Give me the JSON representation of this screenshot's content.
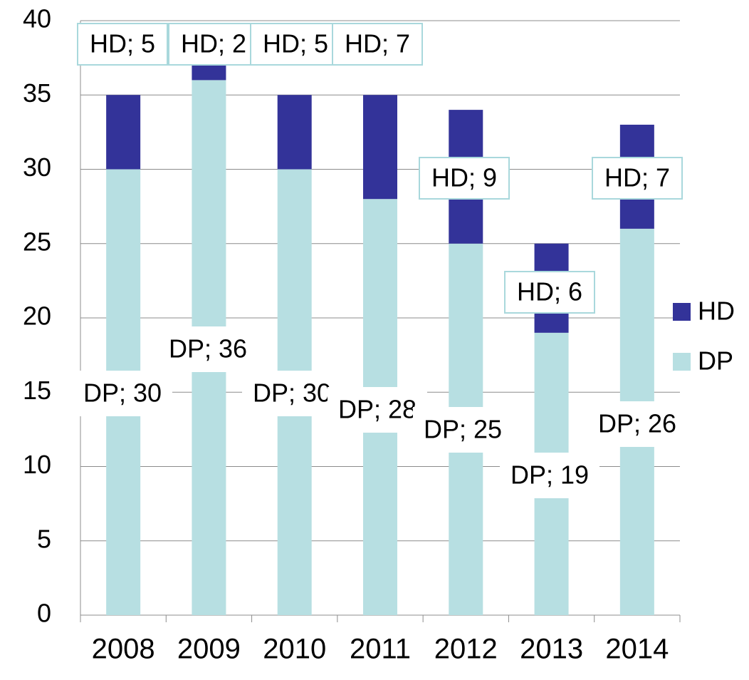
{
  "chart_data": {
    "type": "stacked_bar",
    "categories": [
      "2008",
      "2009",
      "2010",
      "2011",
      "2012",
      "2013",
      "2014"
    ],
    "series": [
      {
        "name": "DP",
        "color": "#b7dfe2",
        "values": [
          30,
          36,
          30,
          28,
          25,
          19,
          26
        ],
        "value_labels": [
          "DP; 30",
          "DP; 36",
          "DP; 30",
          "DP; 28",
          "DP; 25",
          "DP; 19",
          "DP; 26"
        ]
      },
      {
        "name": "HD",
        "color": "#333399",
        "values": [
          5,
          2,
          5,
          7,
          9,
          6,
          7
        ],
        "value_labels": [
          "HD; 5",
          "HD; 2",
          "HD; 5",
          "HD; 7",
          "HD; 9",
          "HD; 6",
          "HD; 7"
        ]
      }
    ],
    "ylim": [
      0,
      40
    ],
    "yticks": [
      0,
      5,
      10,
      15,
      20,
      25,
      30,
      35,
      40
    ],
    "grid": true,
    "legend": "right"
  }
}
